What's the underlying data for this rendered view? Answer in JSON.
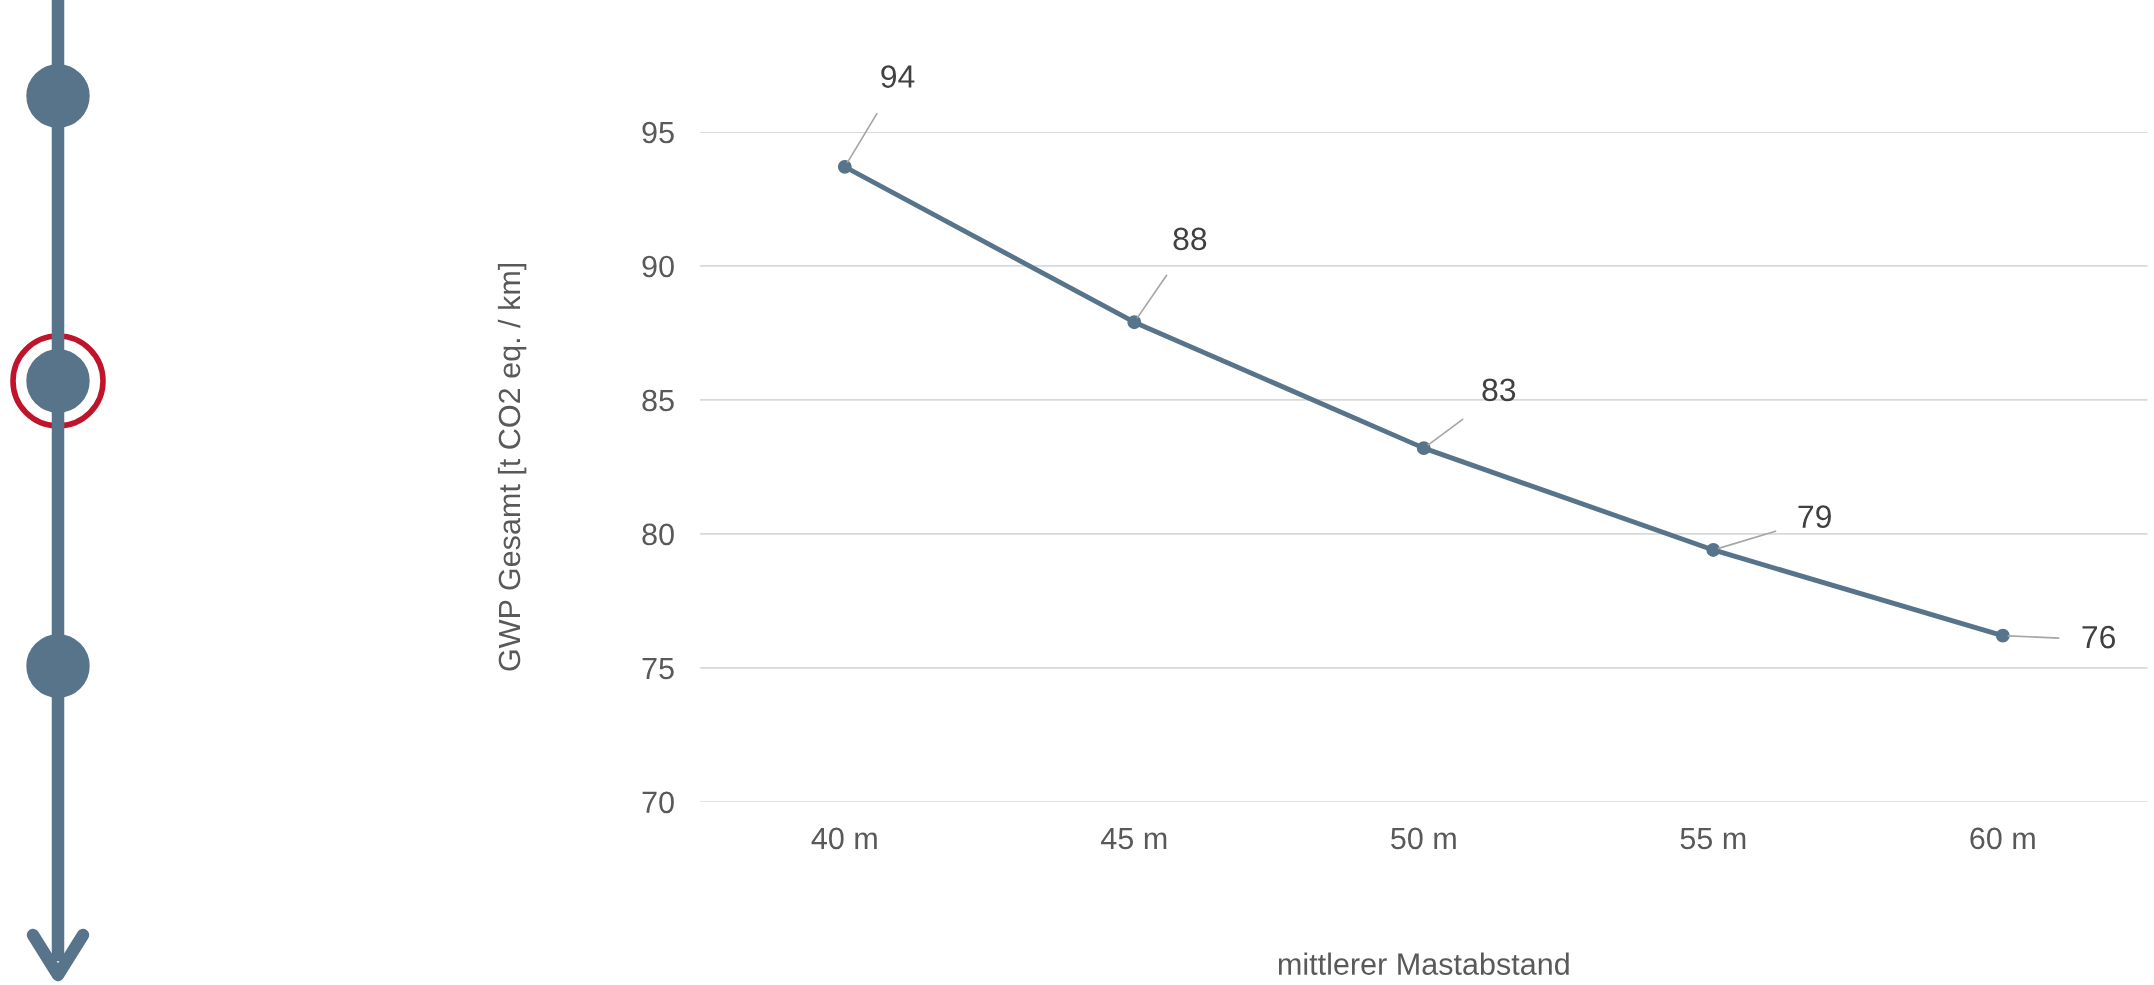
{
  "chart_data": {
    "type": "line",
    "xlabel": "mittlerer Mastabstand",
    "ylabel": "GWP Gesamt [t CO2 eq. / km]",
    "categories": [
      "40 m",
      "45 m",
      "50 m",
      "55 m",
      "60 m"
    ],
    "series": [
      {
        "color": "#58748b",
        "values": [
          93.7,
          87.9,
          83.2,
          79.4,
          76.2
        ],
        "value_labels": [
          "94",
          "88",
          "83",
          "79",
          "76"
        ]
      }
    ],
    "ylim": [
      70,
      95
    ],
    "yticks": [
      70,
      75,
      80,
      85,
      90,
      95
    ],
    "grid": "y",
    "marker": "circle",
    "line_style": "solid"
  }
}
